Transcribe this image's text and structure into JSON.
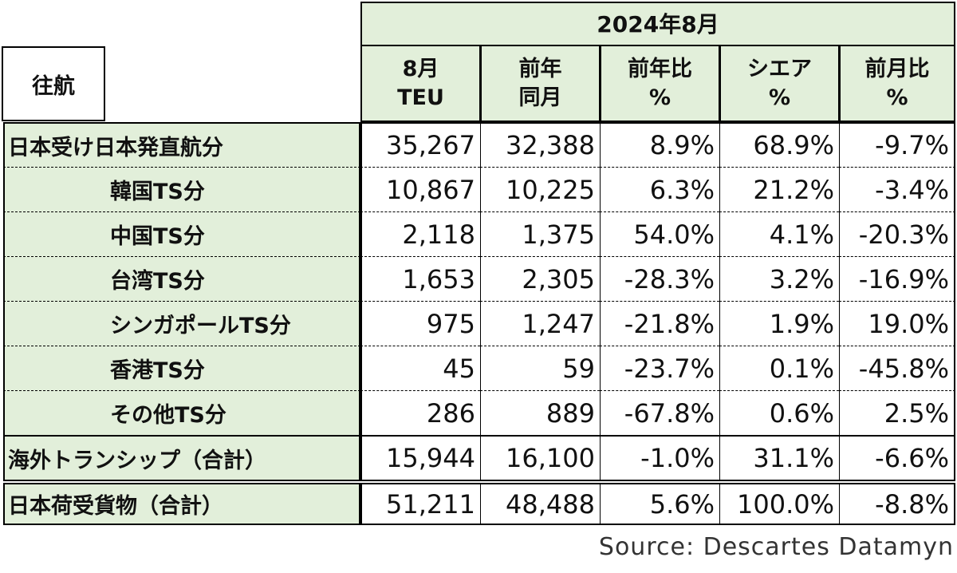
{
  "table": {
    "corner_label": "往航",
    "group_header": "2024年8月",
    "columns": [
      {
        "line1": "8月",
        "line2": "TEU"
      },
      {
        "line1": "前年",
        "line2": "同月"
      },
      {
        "line1": "前年比",
        "line2": "%"
      },
      {
        "line1": "シエア",
        "line2": "%"
      },
      {
        "line1": "前月比",
        "line2": "%"
      }
    ],
    "rows": [
      {
        "label": "日本受け日本発直航分",
        "values": [
          "35,267",
          "32,388",
          "8.9%",
          "68.9%",
          "-9.7%"
        ]
      },
      {
        "label": "韓国TS分",
        "values": [
          "10,867",
          "10,225",
          "6.3%",
          "21.2%",
          "-3.4%"
        ]
      },
      {
        "label": "中国TS分",
        "values": [
          "2,118",
          "1,375",
          "54.0%",
          "4.1%",
          "-20.3%"
        ]
      },
      {
        "label": "台湾TS分",
        "values": [
          "1,653",
          "2,305",
          "-28.3%",
          "3.2%",
          "-16.9%"
        ]
      },
      {
        "label": "シンガポールTS分",
        "values": [
          "975",
          "1,247",
          "-21.8%",
          "1.9%",
          "19.0%"
        ]
      },
      {
        "label": "香港TS分",
        "values": [
          "45",
          "59",
          "-23.7%",
          "0.1%",
          "-45.8%"
        ]
      },
      {
        "label": "その他TS分",
        "values": [
          "286",
          "889",
          "-67.8%",
          "0.6%",
          "2.5%"
        ]
      },
      {
        "label": "海外トランシップ（合計）",
        "values": [
          "15,944",
          "16,100",
          "-1.0%",
          "31.1%",
          "-6.6%"
        ]
      },
      {
        "label": "日本荷受貨物（合計）",
        "values": [
          "51,211",
          "48,488",
          "5.6%",
          "100.0%",
          "-8.8%"
        ]
      }
    ]
  },
  "source": "Source:  Descartes Datamyn"
}
